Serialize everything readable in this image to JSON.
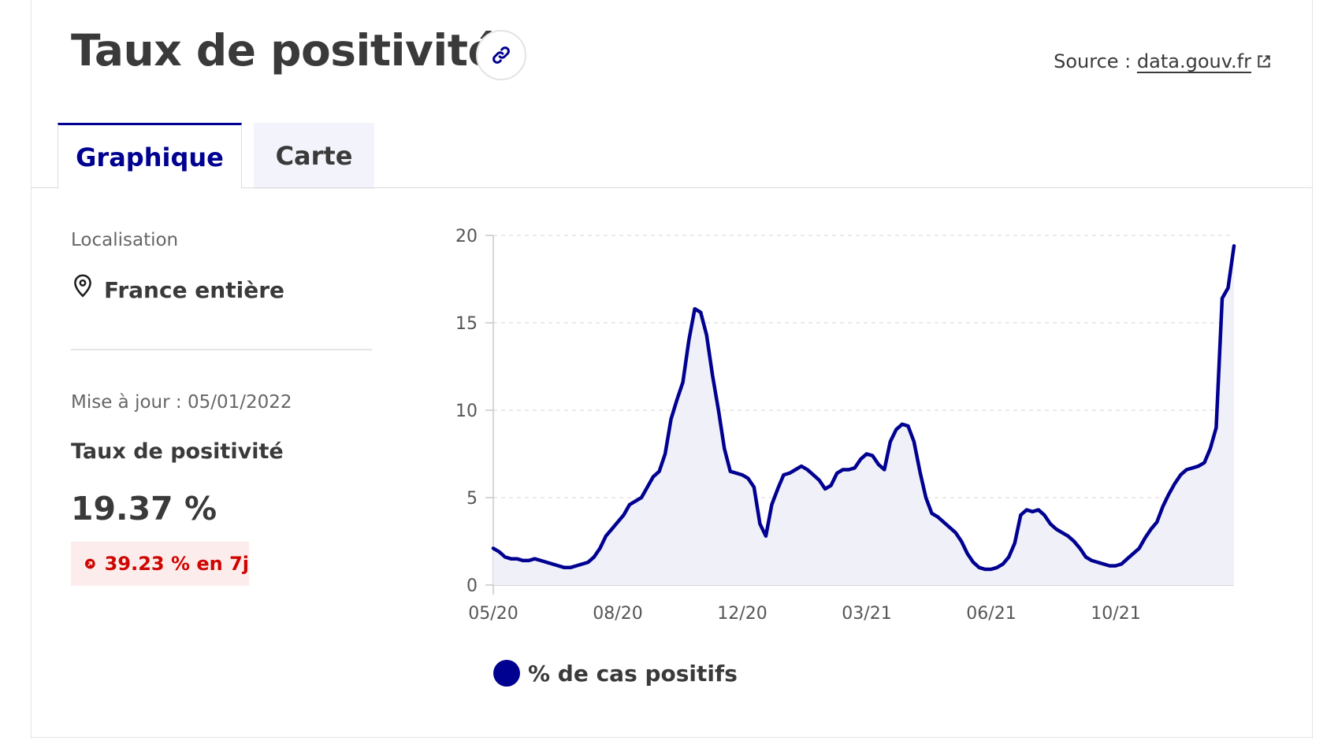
{
  "header": {
    "title": "Taux de positivité",
    "link_icon": "link-icon",
    "source_prefix": "Source : ",
    "source_link": "data.gouv.fr",
    "external_icon": "external-link-icon"
  },
  "tabs": [
    {
      "label": "Graphique",
      "active": true
    },
    {
      "label": "Carte",
      "active": false
    }
  ],
  "sidebar": {
    "location_label": "Localisation",
    "location_icon": "map-pin-icon",
    "location_value": "France entière",
    "update_text": "Mise à jour : 05/01/2022",
    "kpi_label": "Taux de positivité",
    "kpi_value": "19.37 %",
    "trend_icon": "arrow-up-right-icon",
    "trend_text": "39.23 % en 7j"
  },
  "colors": {
    "accent": "#000091",
    "fill": "#f0f0f8",
    "trend_red": "#ce0500",
    "trend_bg": "#fdecec"
  },
  "chart_data": {
    "type": "area",
    "x_start": "2020-05",
    "x_ticks": [
      "05/20",
      "08/20",
      "12/20",
      "03/21",
      "06/21",
      "10/21"
    ],
    "y_ticks": [
      0,
      5,
      10,
      15,
      20
    ],
    "ylim": [
      0,
      20
    ],
    "grid": "horizontal dashed",
    "legend_position": "bottom-left",
    "series": [
      {
        "name": "% de cas positifs",
        "color": "#000091",
        "points": [
          [
            0.0,
            2.1
          ],
          [
            0.1,
            1.9
          ],
          [
            0.2,
            1.6
          ],
          [
            0.3,
            1.5
          ],
          [
            0.4,
            1.5
          ],
          [
            0.5,
            1.4
          ],
          [
            0.6,
            1.4
          ],
          [
            0.7,
            1.5
          ],
          [
            0.8,
            1.4
          ],
          [
            0.9,
            1.3
          ],
          [
            1.0,
            1.2
          ],
          [
            1.1,
            1.1
          ],
          [
            1.2,
            1.0
          ],
          [
            1.3,
            1.0
          ],
          [
            1.4,
            1.1
          ],
          [
            1.5,
            1.2
          ],
          [
            1.6,
            1.3
          ],
          [
            1.7,
            1.6
          ],
          [
            1.8,
            2.1
          ],
          [
            1.9,
            2.8
          ],
          [
            2.0,
            3.2
          ],
          [
            2.1,
            3.6
          ],
          [
            2.2,
            4.0
          ],
          [
            2.3,
            4.6
          ],
          [
            2.4,
            4.8
          ],
          [
            2.5,
            5.0
          ],
          [
            2.6,
            5.6
          ],
          [
            2.7,
            6.2
          ],
          [
            2.8,
            6.5
          ],
          [
            2.9,
            7.5
          ],
          [
            3.0,
            9.5
          ],
          [
            3.1,
            10.6
          ],
          [
            3.2,
            11.6
          ],
          [
            3.3,
            14.0
          ],
          [
            3.4,
            15.8
          ],
          [
            3.5,
            15.6
          ],
          [
            3.6,
            14.3
          ],
          [
            3.7,
            12.0
          ],
          [
            3.8,
            10.0
          ],
          [
            3.9,
            7.8
          ],
          [
            4.0,
            6.5
          ],
          [
            4.1,
            6.4
          ],
          [
            4.2,
            6.3
          ],
          [
            4.3,
            6.1
          ],
          [
            4.4,
            5.6
          ],
          [
            4.5,
            3.5
          ],
          [
            4.6,
            2.8
          ],
          [
            4.7,
            4.6
          ],
          [
            4.8,
            5.5
          ],
          [
            4.9,
            6.3
          ],
          [
            5.0,
            6.4
          ],
          [
            5.1,
            6.6
          ],
          [
            5.2,
            6.8
          ],
          [
            5.3,
            6.6
          ],
          [
            5.4,
            6.3
          ],
          [
            5.5,
            6.0
          ],
          [
            5.6,
            5.5
          ],
          [
            5.7,
            5.7
          ],
          [
            5.8,
            6.4
          ],
          [
            5.9,
            6.6
          ],
          [
            6.0,
            6.6
          ],
          [
            6.1,
            6.7
          ],
          [
            6.2,
            7.2
          ],
          [
            6.3,
            7.5
          ],
          [
            6.4,
            7.4
          ],
          [
            6.5,
            6.9
          ],
          [
            6.6,
            6.6
          ],
          [
            6.7,
            8.2
          ],
          [
            6.8,
            8.9
          ],
          [
            6.9,
            9.2
          ],
          [
            7.0,
            9.1
          ],
          [
            7.1,
            8.2
          ],
          [
            7.2,
            6.5
          ],
          [
            7.3,
            5.0
          ],
          [
            7.4,
            4.1
          ],
          [
            7.5,
            3.9
          ],
          [
            7.6,
            3.6
          ],
          [
            7.7,
            3.3
          ],
          [
            7.8,
            3.0
          ],
          [
            7.9,
            2.5
          ],
          [
            8.0,
            1.8
          ],
          [
            8.1,
            1.3
          ],
          [
            8.2,
            1.0
          ],
          [
            8.3,
            0.9
          ],
          [
            8.4,
            0.9
          ],
          [
            8.5,
            1.0
          ],
          [
            8.6,
            1.2
          ],
          [
            8.7,
            1.6
          ],
          [
            8.8,
            2.4
          ],
          [
            8.9,
            4.0
          ],
          [
            9.0,
            4.3
          ],
          [
            9.1,
            4.2
          ],
          [
            9.2,
            4.3
          ],
          [
            9.3,
            4.0
          ],
          [
            9.4,
            3.5
          ],
          [
            9.5,
            3.2
          ],
          [
            9.6,
            3.0
          ],
          [
            9.7,
            2.8
          ],
          [
            9.8,
            2.5
          ],
          [
            9.9,
            2.1
          ],
          [
            10.0,
            1.6
          ],
          [
            10.1,
            1.4
          ],
          [
            10.2,
            1.3
          ],
          [
            10.3,
            1.2
          ],
          [
            10.4,
            1.1
          ],
          [
            10.5,
            1.1
          ],
          [
            10.6,
            1.2
          ],
          [
            10.7,
            1.5
          ],
          [
            10.8,
            1.8
          ],
          [
            10.9,
            2.1
          ],
          [
            11.0,
            2.7
          ],
          [
            11.1,
            3.2
          ],
          [
            11.2,
            3.6
          ],
          [
            11.3,
            4.5
          ],
          [
            11.4,
            5.2
          ],
          [
            11.5,
            5.8
          ],
          [
            11.6,
            6.3
          ],
          [
            11.7,
            6.6
          ],
          [
            11.8,
            6.7
          ],
          [
            11.9,
            6.8
          ],
          [
            12.0,
            7.0
          ],
          [
            12.1,
            7.8
          ],
          [
            12.2,
            9.0
          ],
          [
            12.3,
            16.4
          ],
          [
            12.4,
            17.0
          ],
          [
            12.5,
            19.4
          ]
        ]
      }
    ]
  }
}
